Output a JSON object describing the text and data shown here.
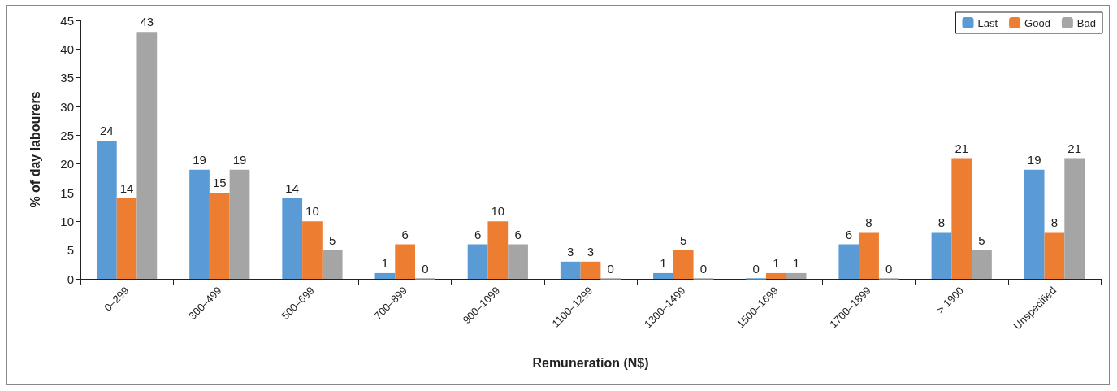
{
  "chart_data": {
    "type": "bar",
    "xlabel": "Remuneration (N$)",
    "ylabel": "% of day labourers",
    "categories": [
      "0–299",
      "300–499",
      "500–699",
      "700–899",
      "900–1099",
      "1100–1299",
      "1300–1499",
      "1500–1699",
      "1700–1899",
      "> 1900",
      "Unspecified"
    ],
    "series": [
      {
        "name": "Last",
        "color": "#5b9bd5",
        "values": [
          24,
          19,
          14,
          1,
          6,
          3,
          1,
          0,
          6,
          8,
          19
        ]
      },
      {
        "name": "Good",
        "color": "#ed7d31",
        "values": [
          14,
          15,
          10,
          6,
          10,
          3,
          5,
          1,
          8,
          21,
          8
        ]
      },
      {
        "name": "Bad",
        "color": "#a5a5a5",
        "values": [
          43,
          19,
          5,
          0,
          6,
          0,
          0,
          1,
          0,
          5,
          21
        ]
      }
    ],
    "ylim": [
      0,
      45
    ],
    "yticks": [
      0,
      5,
      10,
      15,
      20,
      25,
      30,
      35,
      40,
      45
    ],
    "grid": false,
    "legend": "top right",
    "data_labels": true
  }
}
